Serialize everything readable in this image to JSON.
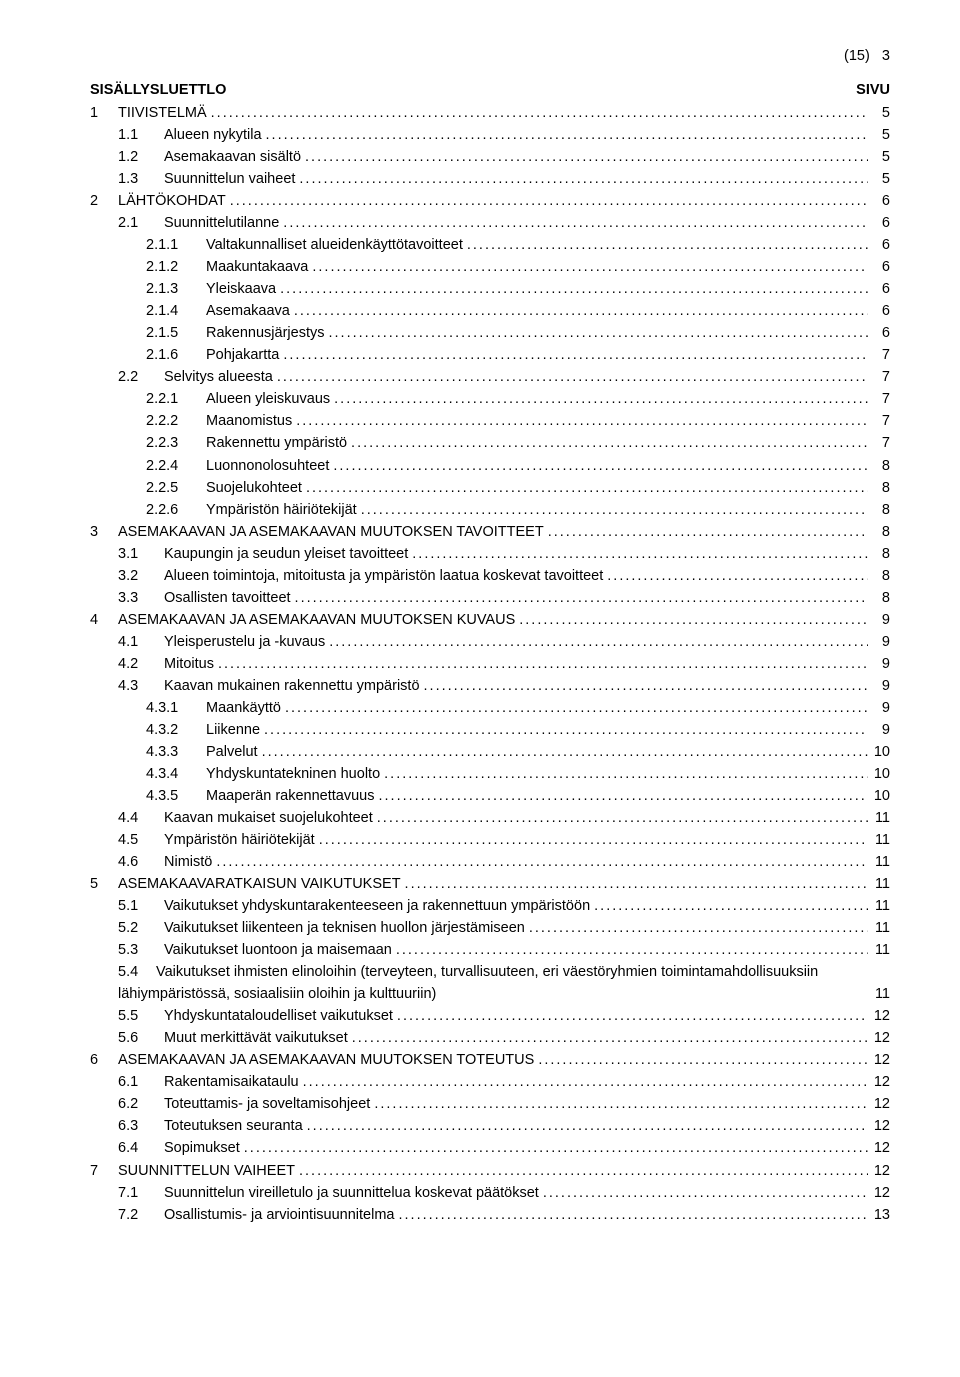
{
  "header": {
    "page_mark": "(15)",
    "page_num": "3"
  },
  "title_left": "SISÄLLYSLUETTLO",
  "title_right": "SIVU",
  "toc": [
    {
      "lvl": 1,
      "num": "1",
      "label": "TIIVISTELMÄ",
      "page": "5"
    },
    {
      "lvl": 2,
      "num": "1.1",
      "label": "Alueen nykytila",
      "page": "5"
    },
    {
      "lvl": 2,
      "num": "1.2",
      "label": "Asemakaavan sisältö",
      "page": "5"
    },
    {
      "lvl": 2,
      "num": "1.3",
      "label": "Suunnittelun vaiheet",
      "page": "5"
    },
    {
      "lvl": 1,
      "num": "2",
      "label": "LÄHTÖKOHDAT",
      "page": "6"
    },
    {
      "lvl": 2,
      "num": "2.1",
      "label": "Suunnittelutilanne",
      "page": "6"
    },
    {
      "lvl": 3,
      "num": "2.1.1",
      "label": "Valtakunnalliset alueidenkäyttötavoitteet",
      "page": "6"
    },
    {
      "lvl": 3,
      "num": "2.1.2",
      "label": "Maakuntakaava",
      "page": "6"
    },
    {
      "lvl": 3,
      "num": "2.1.3",
      "label": "Yleiskaava",
      "page": "6"
    },
    {
      "lvl": 3,
      "num": "2.1.4",
      "label": "Asemakaava",
      "page": "6"
    },
    {
      "lvl": 3,
      "num": "2.1.5",
      "label": "Rakennusjärjestys",
      "page": "6"
    },
    {
      "lvl": 3,
      "num": "2.1.6",
      "label": "Pohjakartta",
      "page": "7"
    },
    {
      "lvl": 2,
      "num": "2.2",
      "label": "Selvitys alueesta",
      "page": "7"
    },
    {
      "lvl": 3,
      "num": "2.2.1",
      "label": "Alueen yleiskuvaus",
      "page": "7"
    },
    {
      "lvl": 3,
      "num": "2.2.2",
      "label": "Maanomistus",
      "page": "7"
    },
    {
      "lvl": 3,
      "num": "2.2.3",
      "label": "Rakennettu ympäristö",
      "page": "7"
    },
    {
      "lvl": 3,
      "num": "2.2.4",
      "label": "Luonnonolosuhteet",
      "page": "8"
    },
    {
      "lvl": 3,
      "num": "2.2.5",
      "label": "Suojelukohteet",
      "page": "8"
    },
    {
      "lvl": 3,
      "num": "2.2.6",
      "label": "Ympäristön häiriötekijät",
      "page": "8"
    },
    {
      "lvl": 1,
      "num": "3",
      "label": "ASEMAKAAVAN JA ASEMAKAAVAN MUUTOKSEN TAVOITTEET",
      "page": "8"
    },
    {
      "lvl": 2,
      "num": "3.1",
      "label": "Kaupungin ja seudun yleiset tavoitteet",
      "page": "8"
    },
    {
      "lvl": 2,
      "num": "3.2",
      "label": "Alueen toimintoja, mitoitusta ja ympäristön laatua koskevat tavoitteet",
      "page": "8"
    },
    {
      "lvl": 2,
      "num": "3.3",
      "label": "Osallisten tavoitteet",
      "page": "8"
    },
    {
      "lvl": 1,
      "num": "4",
      "label": "ASEMAKAAVAN JA ASEMAKAAVAN MUUTOKSEN KUVAUS",
      "page": "9"
    },
    {
      "lvl": 2,
      "num": "4.1",
      "label": "Yleisperustelu ja -kuvaus",
      "page": "9"
    },
    {
      "lvl": 2,
      "num": "4.2",
      "label": "Mitoitus",
      "page": "9"
    },
    {
      "lvl": 2,
      "num": "4.3",
      "label": "Kaavan mukainen rakennettu ympäristö",
      "page": "9"
    },
    {
      "lvl": 3,
      "num": "4.3.1",
      "label": "Maankäyttö",
      "page": "9"
    },
    {
      "lvl": 3,
      "num": "4.3.2",
      "label": "Liikenne",
      "page": "9"
    },
    {
      "lvl": 3,
      "num": "4.3.3",
      "label": "Palvelut",
      "page": "10"
    },
    {
      "lvl": 3,
      "num": "4.3.4",
      "label": "Yhdyskuntatekninen huolto",
      "page": "10"
    },
    {
      "lvl": 3,
      "num": "4.3.5",
      "label": "Maaperän rakennettavuus",
      "page": "10"
    },
    {
      "lvl": 2,
      "num": "4.4",
      "label": "Kaavan mukaiset suojelukohteet",
      "page": "11"
    },
    {
      "lvl": 2,
      "num": "4.5",
      "label": "Ympäristön häiriötekijät",
      "page": "11"
    },
    {
      "lvl": 2,
      "num": "4.6",
      "label": "Nimistö",
      "page": "11"
    },
    {
      "lvl": 1,
      "num": "5",
      "label": "ASEMAKAAVARATKAISUN VAIKUTUKSET",
      "page": "11"
    },
    {
      "lvl": 2,
      "num": "5.1",
      "label": "Vaikutukset yhdyskuntarakenteeseen ja rakennettuun ympäristöön",
      "page": "11"
    },
    {
      "lvl": 2,
      "num": "5.2",
      "label": "Vaikutukset liikenteen ja teknisen huollon järjestämiseen",
      "page": "11"
    },
    {
      "lvl": 2,
      "num": "5.3",
      "label": "Vaikutukset luontoon ja maisemaan",
      "page": "11"
    },
    {
      "lvl": 2,
      "num": "5.4",
      "label": "Vaikutukset ihmisten elinoloihin (terveyteen, turvallisuuteen, eri väestöryhmien toimintamahdollisuuksiin lähiympäristössä, sosiaalisiin oloihin ja kulttuuriin)",
      "page": "11",
      "wrap": true
    },
    {
      "lvl": 2,
      "num": "5.5",
      "label": "Yhdyskuntataloudelliset vaikutukset",
      "page": "12"
    },
    {
      "lvl": 2,
      "num": "5.6",
      "label": "Muut merkittävät vaikutukset",
      "page": "12"
    },
    {
      "lvl": 1,
      "num": "6",
      "label": "ASEMAKAAVAN JA ASEMAKAAVAN MUUTOKSEN TOTEUTUS",
      "page": "12"
    },
    {
      "lvl": 2,
      "num": "6.1",
      "label": "Rakentamisaikataulu",
      "page": "12"
    },
    {
      "lvl": 2,
      "num": "6.2",
      "label": "Toteuttamis- ja soveltamisohjeet",
      "page": "12"
    },
    {
      "lvl": 2,
      "num": "6.3",
      "label": "Toteutuksen seuranta",
      "page": "12"
    },
    {
      "lvl": 2,
      "num": "6.4",
      "label": "Sopimukset",
      "page": "12"
    },
    {
      "lvl": 1,
      "num": "7",
      "label": "SUUNNITTELUN VAIHEET",
      "page": "12"
    },
    {
      "lvl": 2,
      "num": "7.1",
      "label": "Suunnittelun vireilletulo ja suunnittelua koskevat päätökset",
      "page": "12"
    },
    {
      "lvl": 2,
      "num": "7.2",
      "label": "Osallistumis- ja arviointisuunnitelma",
      "page": "13"
    }
  ]
}
